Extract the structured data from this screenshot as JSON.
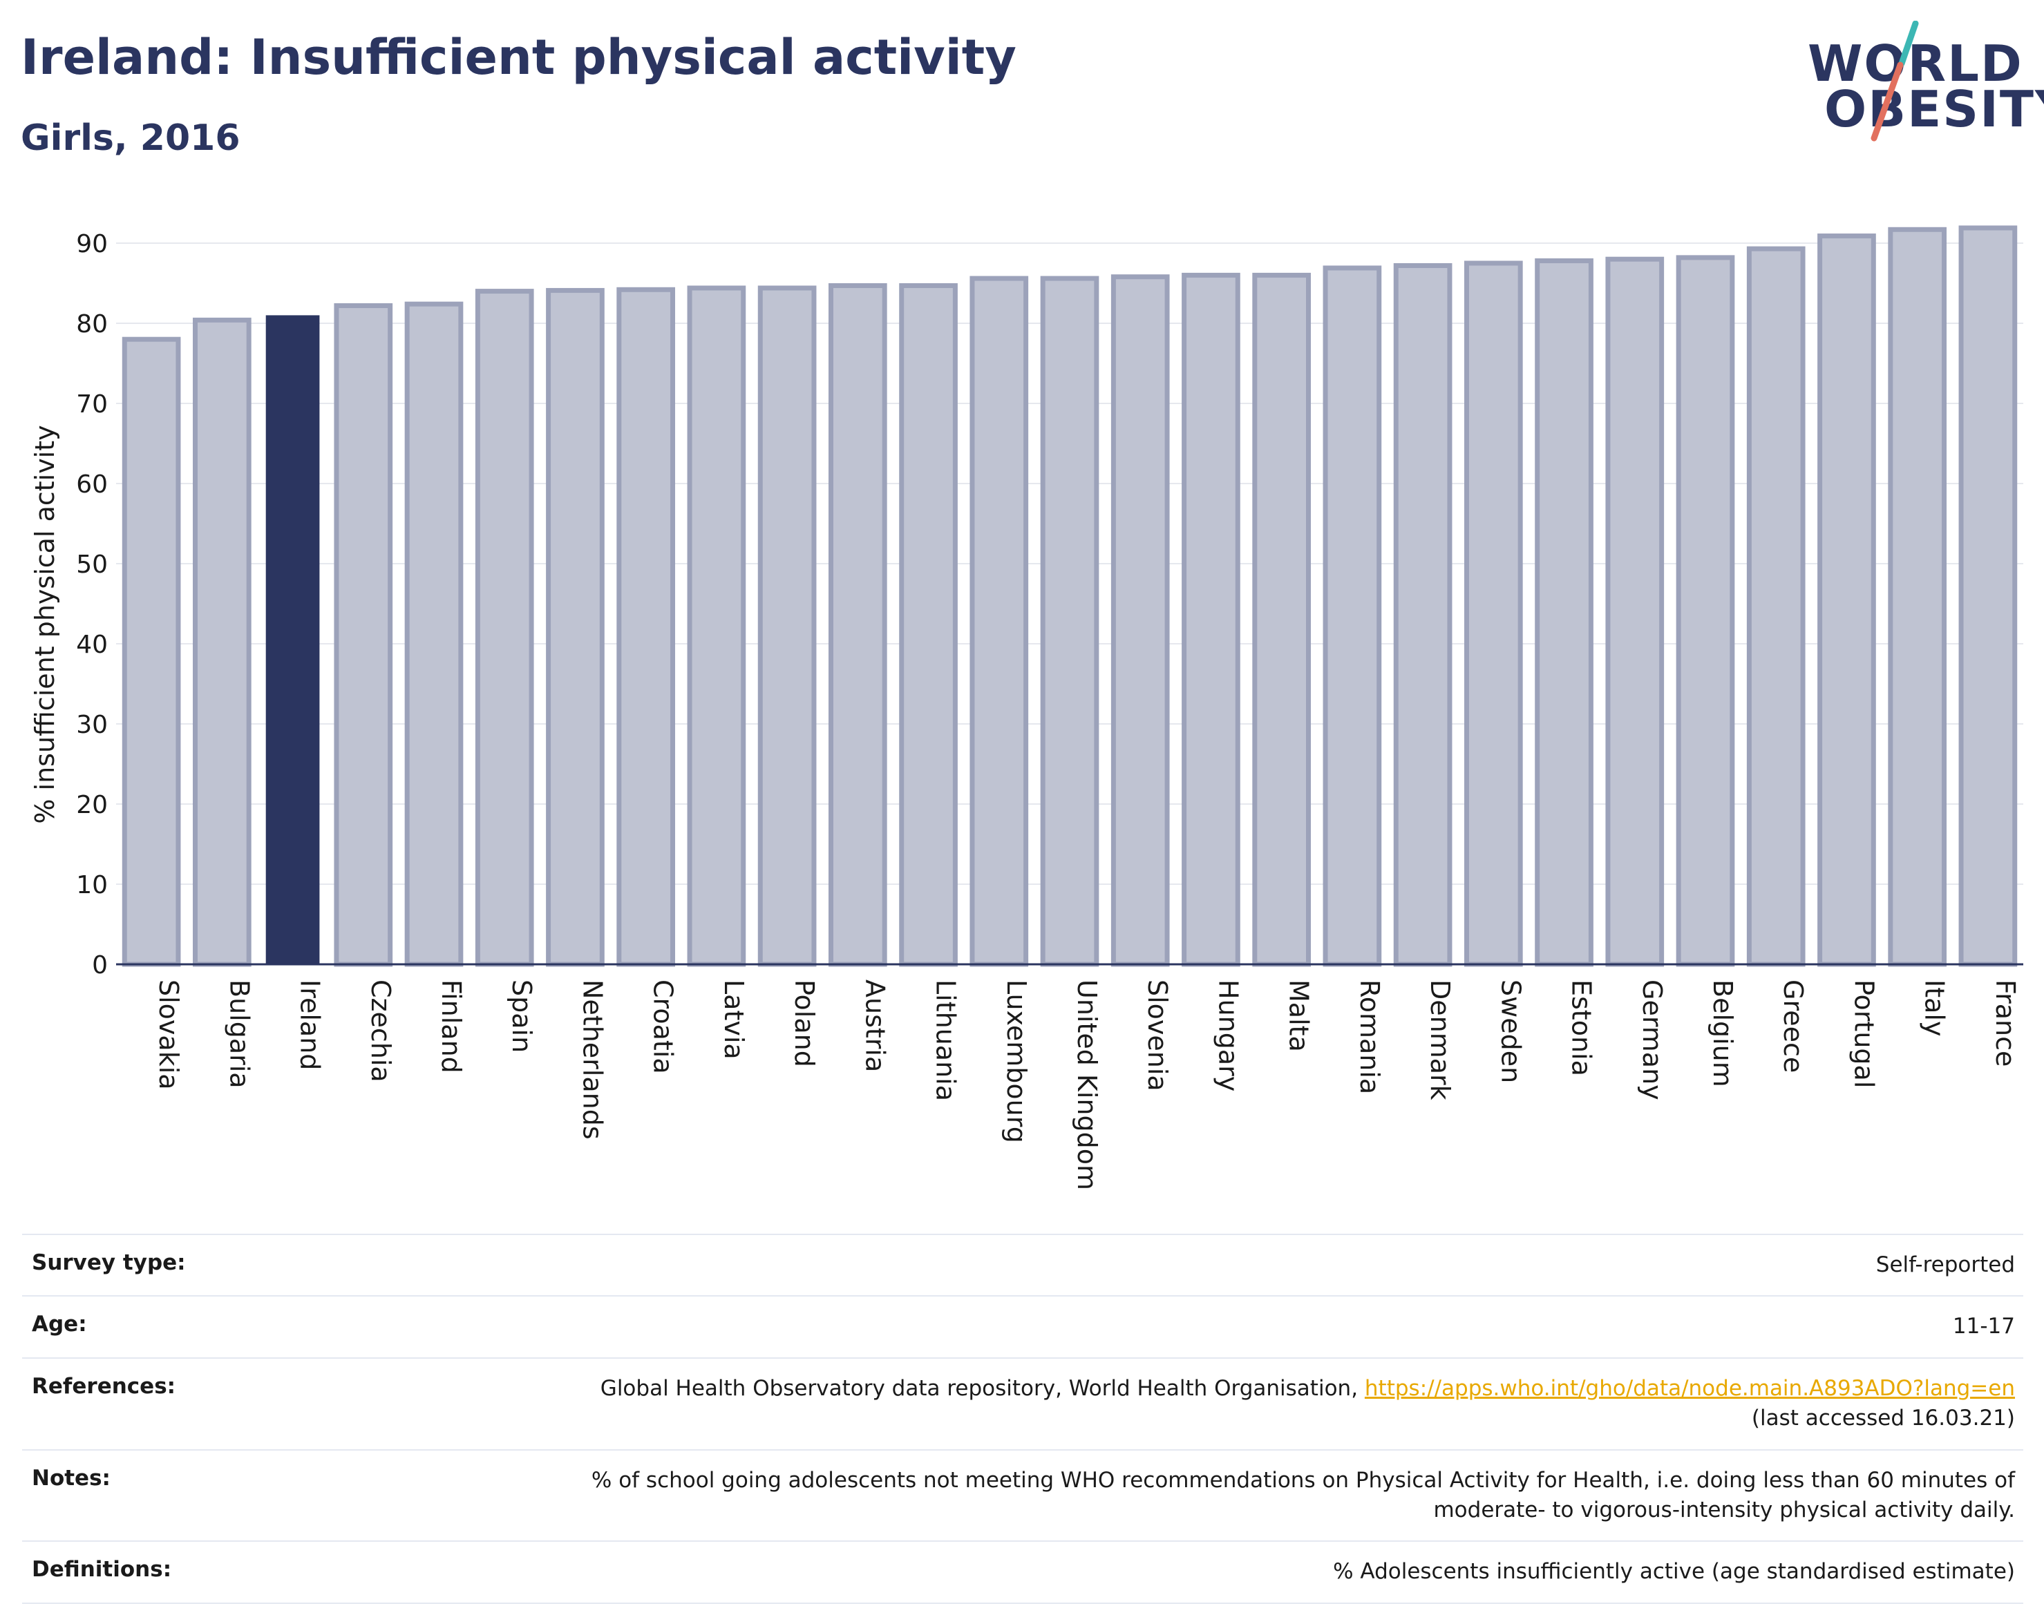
{
  "header": {
    "title": "Ireland: Insufficient physical activity",
    "subtitle": "Girls, 2016"
  },
  "logo": {
    "line1": "WORLD",
    "line2": "OBESITY",
    "slash_colors": [
      "#3cb7b4",
      "#e2705e"
    ]
  },
  "colors": {
    "highlight": "#2b3560",
    "bar_fill": "#bfc3d2",
    "bar_stroke": "#9ca2ba",
    "title": "#2b3560",
    "link": "#e8a800"
  },
  "chart_data": {
    "type": "bar",
    "ylabel": "% insufficient physical activity",
    "ylim": [
      0,
      90
    ],
    "yticks": [
      0,
      10,
      20,
      30,
      40,
      50,
      60,
      70,
      80,
      90
    ],
    "grid": true,
    "highlight": "Ireland",
    "categories": [
      "Slovakia",
      "Bulgaria",
      "Ireland",
      "Czechia",
      "Finland",
      "Spain",
      "Netherlands",
      "Croatia",
      "Latvia",
      "Poland",
      "Austria",
      "Lithuania",
      "Luxembourg",
      "United Kingdom",
      "Slovenia",
      "Hungary",
      "Malta",
      "Romania",
      "Denmark",
      "Sweden",
      "Estonia",
      "Germany",
      "Belgium",
      "Greece",
      "Portugal",
      "Italy",
      "France"
    ],
    "values": [
      78.0,
      80.4,
      81.0,
      82.2,
      82.4,
      84.0,
      84.1,
      84.2,
      84.4,
      84.4,
      84.7,
      84.7,
      85.6,
      85.6,
      85.8,
      86.0,
      86.0,
      86.9,
      87.2,
      87.5,
      87.8,
      88.0,
      88.2,
      89.3,
      90.9,
      91.7,
      91.9
    ]
  },
  "info": {
    "survey_type_label": "Survey type:",
    "survey_type_value": "Self-reported",
    "age_label": "Age:",
    "age_value": "11-17",
    "references_label": "References:",
    "references_text": "Global Health Observatory data repository, World Health Organisation, ",
    "references_link": "https://apps.who.int/gho/data/node.main.A893ADO?lang=en",
    "references_accessed": "(last accessed 16.03.21)",
    "notes_label": "Notes:",
    "notes_line1": "% of school going adolescents not meeting WHO recommendations on Physical Activity for Health, i.e. doing less than 60 minutes of",
    "notes_line2": "moderate- to vigorous-intensity physical activity daily.",
    "definitions_label": "Definitions:",
    "definitions_value": "% Adolescents insufficiently active (age standardised estimate)"
  }
}
